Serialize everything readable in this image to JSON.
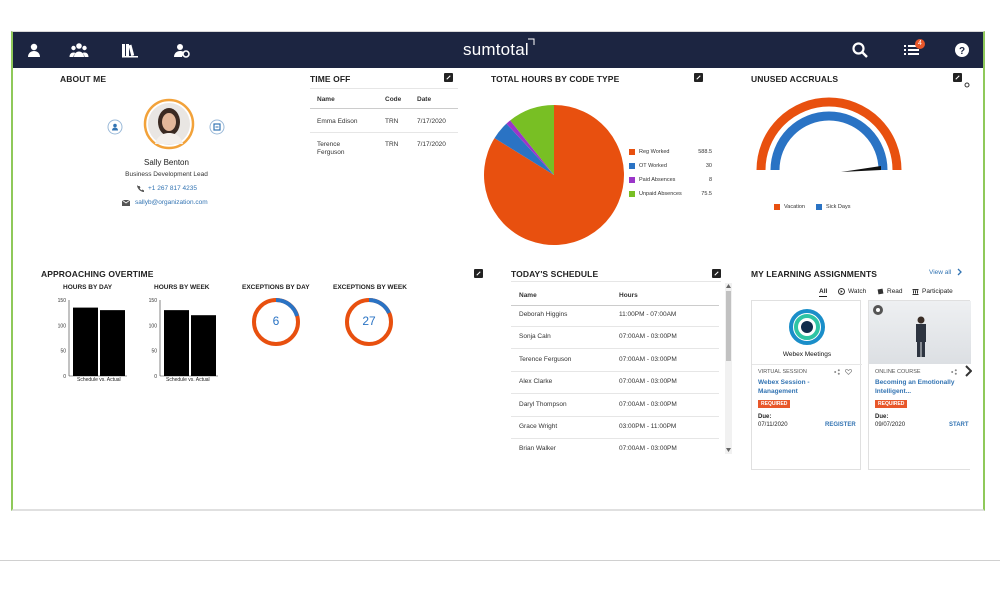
{
  "app": {
    "logo": "sumtotal",
    "notification_count": "4"
  },
  "topbar": {
    "icons": [
      "user-icon",
      "team-icon",
      "library-icon",
      "admin-icon",
      "search-icon",
      "tasks-icon",
      "help-icon"
    ]
  },
  "about_me": {
    "title": "ABOUT ME",
    "name": "Sally Benton",
    "role": "Business Development Lead",
    "phone": "+1 267 817 4235",
    "email": "sallyb@organization.com"
  },
  "time_off": {
    "title": "TIME OFF",
    "headers": [
      "Name",
      "Code",
      "Date"
    ],
    "rows": [
      [
        "Emma Edison",
        "TRN",
        "7/17/2020"
      ],
      [
        "Terence Ferguson",
        "TRN",
        "7/17/2020"
      ]
    ]
  },
  "total_hours": {
    "title": "TOTAL HOURS BY CODE TYPE",
    "legend": [
      {
        "label": "Reg Worked",
        "value": "588.5",
        "color": "#e8500f"
      },
      {
        "label": "OT Worked",
        "value": "30",
        "color": "#2a73c4"
      },
      {
        "label": "Paid Absences",
        "value": "8",
        "color": "#9b36c9"
      },
      {
        "label": "Unpaid Absences",
        "value": "75.5",
        "color": "#78bf24"
      }
    ]
  },
  "unused_accruals": {
    "title": "UNUSED ACCRUALS",
    "legend": [
      {
        "label": "Vacation",
        "color": "#e8500f"
      },
      {
        "label": "Sick Days",
        "color": "#2a73c4"
      }
    ]
  },
  "overtime": {
    "title": "APPROACHING OVERTIME",
    "by_day": {
      "title": "HOURS BY DAY",
      "ticks": [
        "150",
        "100",
        "50",
        "0"
      ],
      "xlabel": "Schedule vs. Actual"
    },
    "by_week": {
      "title": "HOURS BY WEEK",
      "ticks": [
        "150",
        "100",
        "50",
        "0"
      ],
      "xlabel": "Schedule vs. Actual"
    },
    "exc_day": {
      "title": "EXCEPTIONS BY DAY",
      "value": "6"
    },
    "exc_week": {
      "title": "EXCEPTIONS BY WEEK",
      "value": "27"
    }
  },
  "chart_data": [
    {
      "type": "pie",
      "title": "TOTAL HOURS BY CODE TYPE",
      "categories": [
        "Reg Worked",
        "OT Worked",
        "Paid Absences",
        "Unpaid Absences"
      ],
      "values": [
        588.5,
        30,
        8,
        75.5
      ]
    },
    {
      "type": "bar",
      "title": "HOURS BY DAY",
      "categories": [
        "Schedule",
        "Actual"
      ],
      "values": [
        135,
        130
      ],
      "ylim": [
        0,
        150
      ],
      "xlabel": "Schedule vs. Actual"
    },
    {
      "type": "bar",
      "title": "HOURS BY WEEK",
      "categories": [
        "Schedule",
        "Actual"
      ],
      "values": [
        130,
        120
      ],
      "ylim": [
        0,
        150
      ],
      "xlabel": "Schedule vs. Actual"
    }
  ],
  "schedule": {
    "title": "TODAY'S SCHEDULE",
    "headers": [
      "Name",
      "Hours"
    ],
    "rows": [
      [
        "Deborah Higgins",
        "11:00PM - 07:00AM"
      ],
      [
        "Sonja Caln",
        "07:00AM - 03:00PM"
      ],
      [
        "Terence Ferguson",
        "07:00AM - 03:00PM"
      ],
      [
        "Alex Clarke",
        "07:00AM - 03:00PM"
      ],
      [
        "Daryl Thompson",
        "07:00AM - 03:00PM"
      ],
      [
        "Grace Wright",
        "03:00PM - 11:00PM"
      ],
      [
        "Brian Walker",
        "07:00AM - 03:00PM"
      ]
    ]
  },
  "learning": {
    "title": "MY LEARNING ASSIGNMENTS",
    "view_all": "View all",
    "filters": [
      "All",
      "Watch",
      "Read",
      "Participate"
    ],
    "cards": [
      {
        "brand": "Webex Meetings",
        "type": "VIRTUAL SESSION",
        "title": "Webex Session - Management",
        "badge": "REQUIRED",
        "due_label": "Due:",
        "due": "07/11/2020",
        "action": "REGISTER"
      },
      {
        "type": "ONLINE COURSE",
        "title": "Becoming an Emotionally Intelligent...",
        "badge": "REQUIRED",
        "due_label": "Due:",
        "due": "09/07/2020",
        "action": "START"
      }
    ]
  }
}
